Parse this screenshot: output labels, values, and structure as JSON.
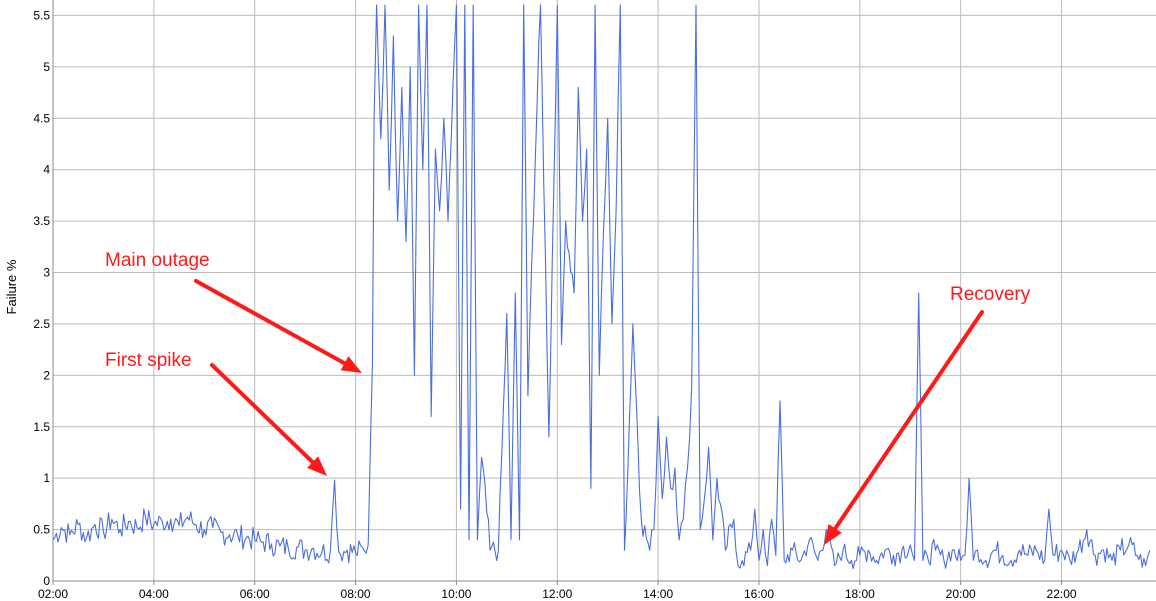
{
  "chart_data": {
    "type": "line",
    "title": "",
    "xlabel": "",
    "ylabel": "Failure %",
    "x_tick_labels": [
      "02:00",
      "04:00",
      "06:00",
      "08:00",
      "10:00",
      "12:00",
      "14:00",
      "16:00",
      "18:00",
      "20:00",
      "22:00"
    ],
    "y_tick_labels": [
      "0",
      "0.5",
      "1",
      "1.5",
      "2",
      "2.5",
      "3",
      "3.5",
      "4",
      "4.5",
      "5",
      "5.5"
    ],
    "xlim": [
      "02:00",
      "23:50"
    ],
    "ylim": [
      0,
      5.65
    ],
    "grid": true,
    "legend": "none",
    "series": [
      {
        "color": "#4a6fdc",
        "points": [
          [
            "02:00",
            0.4
          ],
          [
            "02:10",
            0.52
          ],
          [
            "02:20",
            0.45
          ],
          [
            "02:30",
            0.55
          ],
          [
            "02:40",
            0.42
          ],
          [
            "02:50",
            0.55
          ],
          [
            "03:00",
            0.48
          ],
          [
            "03:10",
            0.6
          ],
          [
            "03:20",
            0.5
          ],
          [
            "03:30",
            0.58
          ],
          [
            "03:40",
            0.52
          ],
          [
            "03:50",
            0.62
          ],
          [
            "04:00",
            0.55
          ],
          [
            "04:10",
            0.58
          ],
          [
            "04:20",
            0.6
          ],
          [
            "04:30",
            0.54
          ],
          [
            "04:40",
            0.62
          ],
          [
            "04:50",
            0.55
          ],
          [
            "05:00",
            0.5
          ],
          [
            "05:10",
            0.52
          ],
          [
            "05:20",
            0.47
          ],
          [
            "05:30",
            0.45
          ],
          [
            "05:40",
            0.44
          ],
          [
            "05:50",
            0.42
          ],
          [
            "06:00",
            0.4
          ],
          [
            "06:10",
            0.38
          ],
          [
            "06:20",
            0.36
          ],
          [
            "06:30",
            0.34
          ],
          [
            "06:40",
            0.32
          ],
          [
            "06:50",
            0.33
          ],
          [
            "07:00",
            0.3
          ],
          [
            "07:10",
            0.32
          ],
          [
            "07:20",
            0.28
          ],
          [
            "07:30",
            0.3
          ],
          [
            "07:35",
            0.98
          ],
          [
            "07:40",
            0.28
          ],
          [
            "07:50",
            0.3
          ],
          [
            "08:00",
            0.28
          ],
          [
            "08:10",
            0.3
          ],
          [
            "08:15",
            0.35
          ],
          [
            "08:18",
            1.45
          ],
          [
            "08:20",
            2.1
          ],
          [
            "08:22",
            4.5
          ],
          [
            "08:25",
            5.6
          ],
          [
            "08:30",
            4.3
          ],
          [
            "08:35",
            5.6
          ],
          [
            "08:40",
            3.8
          ],
          [
            "08:45",
            5.3
          ],
          [
            "08:50",
            3.5
          ],
          [
            "08:55",
            4.8
          ],
          [
            "09:00",
            3.3
          ],
          [
            "09:05",
            5.0
          ],
          [
            "09:10",
            2.0
          ],
          [
            "09:15",
            5.6
          ],
          [
            "09:20",
            4.0
          ],
          [
            "09:25",
            5.6
          ],
          [
            "09:30",
            1.6
          ],
          [
            "09:35",
            4.2
          ],
          [
            "09:40",
            3.6
          ],
          [
            "09:45",
            4.5
          ],
          [
            "09:50",
            3.5
          ],
          [
            "10:00",
            5.6
          ],
          [
            "10:05",
            0.7
          ],
          [
            "10:10",
            5.6
          ],
          [
            "10:15",
            0.4
          ],
          [
            "10:20",
            5.6
          ],
          [
            "10:25",
            0.4
          ],
          [
            "10:30",
            1.2
          ],
          [
            "10:40",
            0.3
          ],
          [
            "10:50",
            0.3
          ],
          [
            "11:00",
            2.6
          ],
          [
            "11:05",
            0.4
          ],
          [
            "11:10",
            2.8
          ],
          [
            "11:15",
            0.4
          ],
          [
            "11:20",
            5.6
          ],
          [
            "11:25",
            1.8
          ],
          [
            "11:30",
            3.2
          ],
          [
            "11:40",
            5.6
          ],
          [
            "11:50",
            1.4
          ],
          [
            "12:00",
            5.6
          ],
          [
            "12:05",
            2.3
          ],
          [
            "12:10",
            3.5
          ],
          [
            "12:20",
            2.8
          ],
          [
            "12:25",
            4.8
          ],
          [
            "12:30",
            3.5
          ],
          [
            "12:35",
            4.2
          ],
          [
            "12:40",
            0.9
          ],
          [
            "12:45",
            5.6
          ],
          [
            "12:50",
            2.0
          ],
          [
            "12:55",
            3.4
          ],
          [
            "13:00",
            4.5
          ],
          [
            "13:05",
            2.5
          ],
          [
            "13:10",
            3.6
          ],
          [
            "13:15",
            5.6
          ],
          [
            "13:20",
            0.3
          ],
          [
            "13:30",
            2.5
          ],
          [
            "13:40",
            0.6
          ],
          [
            "13:50",
            0.3
          ],
          [
            "13:55",
            0.5
          ],
          [
            "14:00",
            1.6
          ],
          [
            "14:05",
            0.8
          ],
          [
            "14:10",
            1.4
          ],
          [
            "14:15",
            0.9
          ],
          [
            "14:20",
            1.1
          ],
          [
            "14:25",
            0.4
          ],
          [
            "14:30",
            0.6
          ],
          [
            "14:35",
            1.1
          ],
          [
            "14:40",
            1.9
          ],
          [
            "14:45",
            5.6
          ],
          [
            "14:50",
            0.5
          ],
          [
            "14:55",
            0.8
          ],
          [
            "15:00",
            1.3
          ],
          [
            "15:05",
            0.4
          ],
          [
            "15:10",
            1.0
          ],
          [
            "15:20",
            0.3
          ],
          [
            "15:30",
            0.6
          ],
          [
            "15:35",
            0.15
          ],
          [
            "15:40",
            0.2
          ],
          [
            "15:50",
            0.3
          ],
          [
            "15:55",
            0.7
          ],
          [
            "16:00",
            0.2
          ],
          [
            "16:05",
            0.5
          ],
          [
            "16:10",
            0.15
          ],
          [
            "16:15",
            0.6
          ],
          [
            "16:20",
            0.25
          ],
          [
            "16:25",
            1.75
          ],
          [
            "16:30",
            0.2
          ],
          [
            "16:40",
            0.3
          ],
          [
            "16:50",
            0.2
          ],
          [
            "17:00",
            0.4
          ],
          [
            "17:10",
            0.2
          ],
          [
            "17:20",
            0.5
          ],
          [
            "17:30",
            0.15
          ],
          [
            "17:40",
            0.3
          ],
          [
            "17:50",
            0.2
          ],
          [
            "18:00",
            0.25
          ],
          [
            "18:10",
            0.3
          ],
          [
            "18:20",
            0.2
          ],
          [
            "18:30",
            0.3
          ],
          [
            "18:40",
            0.25
          ],
          [
            "18:50",
            0.3
          ],
          [
            "19:00",
            0.35
          ],
          [
            "19:05",
            0.2
          ],
          [
            "19:10",
            2.8
          ],
          [
            "19:15",
            0.2
          ],
          [
            "19:20",
            0.25
          ],
          [
            "19:30",
            0.3
          ],
          [
            "19:40",
            0.2
          ],
          [
            "19:50",
            0.3
          ],
          [
            "20:00",
            0.2
          ],
          [
            "20:05",
            0.25
          ],
          [
            "20:10",
            1.0
          ],
          [
            "20:15",
            0.2
          ],
          [
            "20:20",
            0.3
          ],
          [
            "20:30",
            0.2
          ],
          [
            "20:40",
            0.3
          ],
          [
            "20:50",
            0.25
          ],
          [
            "21:00",
            0.2
          ],
          [
            "21:10",
            0.3
          ],
          [
            "21:20",
            0.25
          ],
          [
            "21:30",
            0.3
          ],
          [
            "21:40",
            0.2
          ],
          [
            "21:45",
            0.7
          ],
          [
            "21:50",
            0.25
          ],
          [
            "22:00",
            0.3
          ],
          [
            "22:10",
            0.2
          ],
          [
            "22:20",
            0.3
          ],
          [
            "22:30",
            0.5
          ],
          [
            "22:40",
            0.25
          ],
          [
            "22:50",
            0.3
          ],
          [
            "23:00",
            0.2
          ],
          [
            "23:10",
            0.3
          ],
          [
            "23:20",
            0.35
          ],
          [
            "23:30",
            0.25
          ],
          [
            "23:40",
            0.15
          ],
          [
            "23:45",
            0.3
          ]
        ]
      }
    ],
    "annotations": [
      {
        "text": "Main outage",
        "points_to": [
          "08:20",
          2.0
        ]
      },
      {
        "text": "First spike",
        "points_to": [
          "07:35",
          1.05
        ]
      },
      {
        "text": "Recovery",
        "points_to": [
          "17:20",
          0.3
        ]
      }
    ]
  },
  "colors": {
    "line": "#4a6fdc",
    "grid": "#bbbbbb",
    "axis": "#888888",
    "annotation": "#ff1a1a"
  }
}
